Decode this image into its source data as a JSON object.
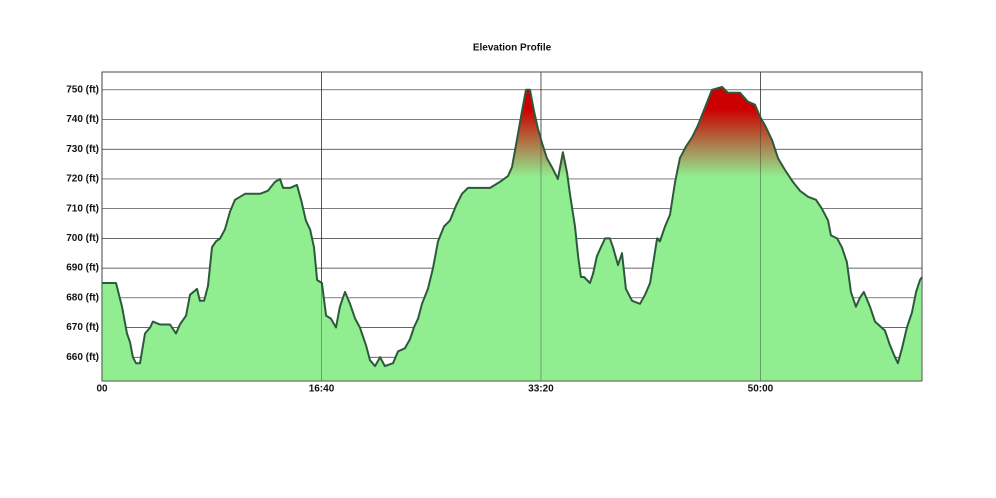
{
  "chart_data": {
    "type": "area",
    "title": "Elevation Profile",
    "x": [
      0,
      64,
      91,
      114,
      128,
      141,
      155,
      173,
      196,
      219,
      232,
      264,
      310,
      337,
      355,
      383,
      401,
      433,
      446,
      465,
      483,
      501,
      519,
      538,
      560,
      583,
      606,
      652,
      720,
      756,
      788,
      811,
      825,
      857,
      888,
      907,
      929,
      948,
      966,
      980,
      1002,
      1021,
      1043,
      1066,
      1084,
      1107,
      1130,
      1153,
      1175,
      1203,
      1221,
      1244,
      1267,
      1289,
      1326,
      1349,
      1380,
      1403,
      1421,
      1440,
      1458,
      1485,
      1508,
      1531,
      1558,
      1585,
      1613,
      1640,
      1667,
      1768,
      1813,
      1850,
      1868,
      1895,
      1914,
      1932,
      1950,
      1968,
      1986,
      2005,
      2027,
      2050,
      2077,
      2100,
      2119,
      2132,
      2155,
      2169,
      2182,
      2196,
      2223,
      2237,
      2255,
      2273,
      2292,
      2314,
      2328,
      2351,
      2369,
      2387,
      2415,
      2451,
      2474,
      2497,
      2510,
      2529,
      2542,
      2565,
      2588,
      2611,
      2633,
      2661,
      2688,
      2715,
      2747,
      2779,
      2825,
      2852,
      2907,
      2943,
      2975,
      2998,
      3021,
      3053,
      3080,
      3112,
      3148,
      3180,
      3217,
      3253,
      3280,
      3308,
      3321,
      3349,
      3371,
      3394,
      3412,
      3435,
      3453,
      3471,
      3499,
      3522,
      3567,
      3590,
      3613,
      3626,
      3645,
      3667,
      3690,
      3709,
      3727,
      3736
    ],
    "values": [
      685,
      685,
      677,
      668,
      665,
      660,
      658,
      658,
      668,
      670,
      672,
      671,
      671,
      668,
      671,
      674,
      681,
      683,
      679,
      679,
      684,
      697,
      699,
      700,
      703,
      709,
      713,
      715,
      715,
      716,
      719,
      720,
      717,
      717,
      718,
      713,
      706,
      703,
      697,
      686,
      685,
      674,
      673,
      670,
      677,
      682,
      678,
      673,
      670,
      664,
      659,
      657,
      660,
      657,
      658,
      662,
      663,
      666,
      670,
      673,
      678,
      683,
      690,
      699,
      704,
      706,
      711,
      715,
      717,
      717,
      719,
      721,
      724,
      735,
      743,
      750,
      750,
      743,
      737,
      732,
      727,
      724,
      720,
      729,
      722,
      715,
      704,
      694,
      687,
      687,
      685,
      688,
      694,
      697,
      700,
      700,
      697,
      691,
      695,
      683,
      679,
      678,
      681,
      685,
      691,
      700,
      699,
      704,
      708,
      719,
      727,
      731,
      734,
      738,
      744,
      750,
      751,
      749,
      749,
      746,
      745,
      741,
      738,
      733,
      727,
      723,
      719,
      716,
      714,
      713,
      710,
      706,
      701,
      700,
      697,
      692,
      682,
      677,
      680,
      682,
      677,
      672,
      669,
      664,
      660,
      658,
      663,
      670,
      675,
      682,
      686,
      687
    ],
    "color": "#2d5a3c",
    "fill": "#90ee90",
    "highlight_fill": "#cc0000",
    "xlim": [
      0,
      3736
    ],
    "ylim": [
      652,
      756
    ],
    "xticks": [
      {
        "value": 0,
        "label": "00"
      },
      {
        "value": 1000,
        "label": "16:40"
      },
      {
        "value": 2000,
        "label": "33:20"
      },
      {
        "value": 3000,
        "label": "50:00"
      }
    ],
    "yticks": [
      {
        "value": 660,
        "label": "660 (ft)"
      },
      {
        "value": 670,
        "label": "670 (ft)"
      },
      {
        "value": 680,
        "label": "680 (ft)"
      },
      {
        "value": 690,
        "label": "690 (ft)"
      },
      {
        "value": 700,
        "label": "700 (ft)"
      },
      {
        "value": 710,
        "label": "710 (ft)"
      },
      {
        "value": 720,
        "label": "720 (ft)"
      },
      {
        "value": 730,
        "label": "730 (ft)"
      },
      {
        "value": 740,
        "label": "740 (ft)"
      },
      {
        "value": 750,
        "label": "750 (ft)"
      }
    ],
    "grid": true
  }
}
